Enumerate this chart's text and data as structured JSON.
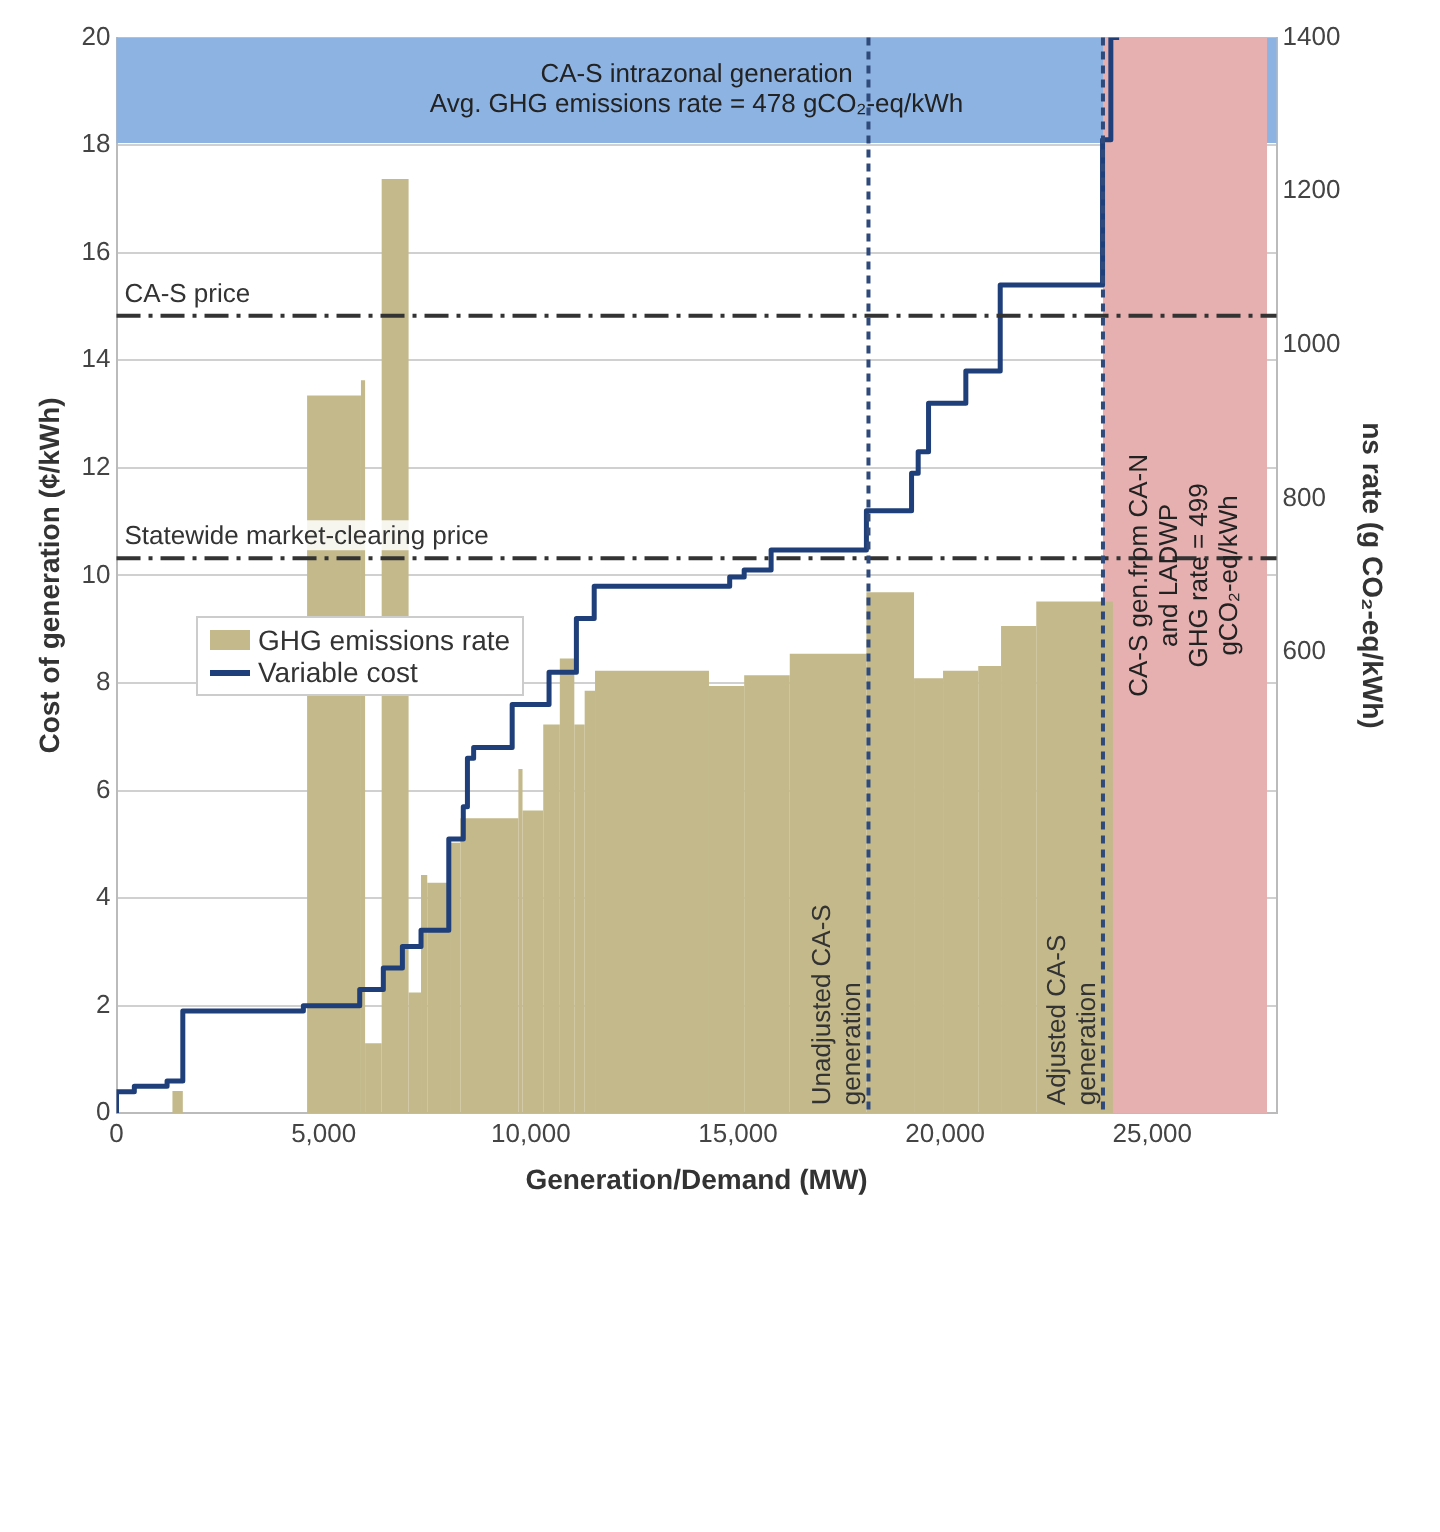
{
  "chart_data": {
    "type": "line",
    "xlabel": "Generation/Demand (MW)",
    "ylabel": "Cost of generation (¢/kWh)",
    "y2label": "ns rate (g CO₂-eq/kWh)",
    "xlim": [
      0,
      28000
    ],
    "xticks": [
      0,
      {
        "value": 5000,
        "label": "5,000"
      },
      {
        "value": 10000,
        "label": "10,000"
      },
      {
        "value": 15000,
        "label": "15,000"
      },
      {
        "value": 20000,
        "label": "20,000"
      },
      {
        "value": 25000,
        "label": "25,000"
      }
    ],
    "ylim": [
      0,
      20
    ],
    "yticks": [
      0,
      2,
      4,
      6,
      8,
      10,
      12,
      14,
      16,
      18,
      20
    ],
    "y2lim": [
      0,
      1400
    ],
    "y2ticks": [
      600,
      800,
      1000,
      1200,
      1400
    ],
    "grid": "y",
    "legend": "left",
    "series": [
      {
        "name": "GHG emissions rate",
        "type": "histogram",
        "axis": "y2",
        "color": "#c4b98a",
        "bins": [
          1350,
          1600,
          4600,
          5900,
          6000,
          6400,
          7050,
          7350,
          7500,
          8050,
          8300,
          9700,
          9800,
          10300,
          10700,
          11050,
          11300,
          11550,
          14300,
          15150,
          16250,
          18100,
          19250,
          19950,
          20800,
          21350,
          22200,
          24050
        ],
        "values": [
          29,
          0,
          934,
          954,
          91,
          1216,
          157,
          310,
          300,
          352,
          384,
          448,
          394,
          506,
          592,
          506,
          550,
          576,
          556,
          570,
          598,
          678,
          566,
          576,
          582,
          634,
          666
        ]
      },
      {
        "name": "Variable cost",
        "type": "step",
        "color": "#1f3f7a",
        "x": [
          0,
          430,
          1220,
          1600,
          4510,
          5870,
          6440,
          6900,
          7350,
          8020,
          8370,
          8470,
          8620,
          9550,
          10440,
          11100,
          11530,
          14800,
          15150,
          15800,
          18100,
          19190,
          19350,
          19600,
          20500,
          21330,
          23800,
          24000,
          24200
        ],
        "values": [
          0,
          0.4,
          0.5,
          0.6,
          1.9,
          2.0,
          2.3,
          2.7,
          3.1,
          3.4,
          5.1,
          5.7,
          6.6,
          6.8,
          7.6,
          8.2,
          9.2,
          9.8,
          9.97,
          10.1,
          10.47,
          11.2,
          11.9,
          12.3,
          13.2,
          13.8,
          15.4,
          18.1,
          20
        ]
      }
    ],
    "ref_lines": [
      {
        "axis": "y",
        "value": 14.83,
        "label": "CA-S price",
        "line_style": "dashed",
        "color": "#333333"
      },
      {
        "axis": "y",
        "value": 10.32,
        "label": "Statewide market-clearing price",
        "line_style": "dashed",
        "color": "#333333"
      },
      {
        "axis": "x",
        "value": 18150,
        "label": "Unadjusted CA-S\ngeneration",
        "line_style": "dotted",
        "color": "#2f4a7a"
      },
      {
        "axis": "x",
        "value": 23810,
        "label": "Adjusted CA-S\ngeneration",
        "line_style": "dotted",
        "color": "#2f4a7a"
      }
    ],
    "bands": [
      {
        "axis": "y",
        "from": 18.04,
        "to": 20,
        "label": "CA-S intrazonal generation\nAvg. GHG emissions rate = 478 gCO₂-eq/kWh",
        "color": "#8db3e2"
      },
      {
        "axis": "x",
        "from": 23810,
        "to": 27770,
        "label": "CA-S gen.from CA-N\nand LADWP\nGHG rate = 499\ngCO₂-eq/kWh",
        "color": "#e6b0b0"
      }
    ]
  }
}
